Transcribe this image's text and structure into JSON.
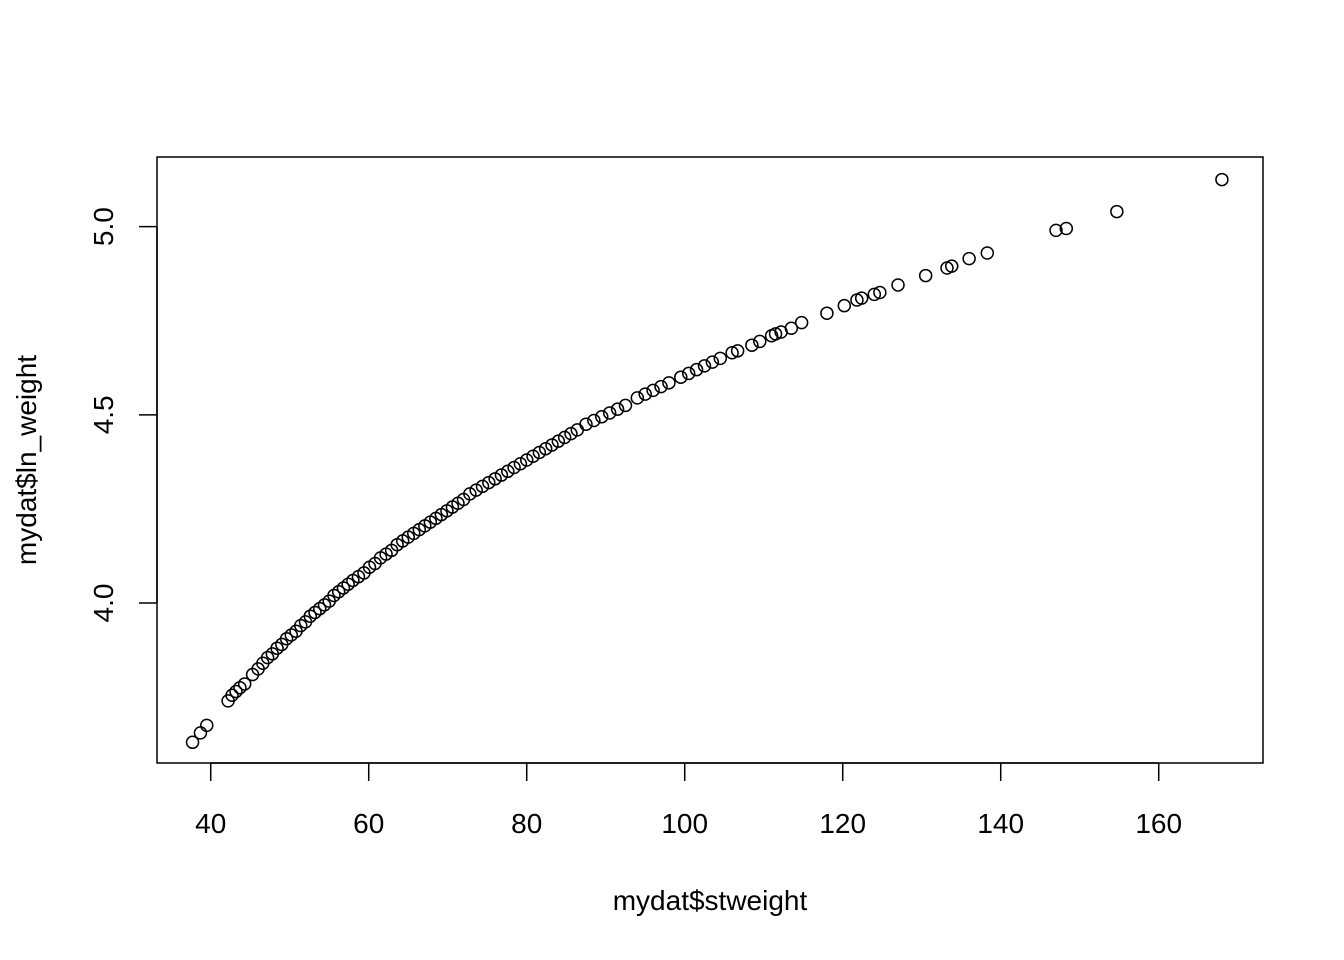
{
  "chart_data": {
    "type": "scatter",
    "title": "",
    "xlabel": "mydat$stweight",
    "ylabel": "mydat$ln_weight",
    "xlim": [
      33.2,
      173.2
    ],
    "ylim": [
      3.575,
      5.185
    ],
    "x_ticks": [
      40,
      60,
      80,
      100,
      120,
      140,
      160
    ],
    "y_ticks": [
      4.0,
      4.5,
      5.0
    ],
    "x_tick_labels": [
      "40",
      "60",
      "80",
      "100",
      "120",
      "140",
      "160"
    ],
    "y_tick_labels": [
      "4.0",
      "4.5",
      "5.0"
    ],
    "grid": false,
    "legend": "none",
    "marker": "open-circle",
    "x": [
      37.7,
      38.7,
      39.5,
      42.2,
      42.7,
      43.2,
      43.7,
      44.3,
      45.3,
      46.0,
      46.6,
      47.2,
      47.8,
      48.4,
      49.0,
      49.6,
      50.2,
      50.8,
      51.4,
      52.0,
      52.6,
      53.2,
      53.8,
      54.4,
      55.0,
      55.6,
      56.2,
      56.8,
      57.4,
      58.0,
      58.7,
      59.4,
      60.1,
      60.8,
      61.5,
      62.2,
      62.9,
      63.6,
      64.3,
      65.0,
      65.7,
      66.4,
      67.1,
      67.8,
      68.5,
      69.2,
      69.9,
      70.6,
      71.3,
      72.0,
      72.8,
      73.6,
      74.4,
      75.2,
      76.0,
      76.8,
      77.6,
      78.4,
      79.2,
      80.0,
      80.8,
      81.6,
      82.4,
      83.2,
      84.0,
      84.8,
      85.6,
      86.4,
      87.5,
      88.5,
      89.5,
      90.5,
      91.5,
      92.5,
      94.0,
      95.0,
      96.0,
      97.0,
      98.0,
      99.5,
      100.5,
      101.5,
      102.5,
      103.5,
      104.5,
      106.0,
      106.7,
      108.5,
      109.5,
      111.0,
      111.5,
      112.2,
      113.5,
      114.8,
      118.0,
      120.2,
      121.8,
      122.4,
      124.0,
      124.7,
      127.0,
      130.5,
      133.2,
      133.8,
      136.0,
      138.3,
      147.0,
      148.3,
      154.7,
      168.0
    ],
    "y": [
      3.63,
      3.655,
      3.675,
      3.74,
      3.755,
      3.765,
      3.775,
      3.785,
      3.81,
      3.825,
      3.84,
      3.855,
      3.865,
      3.88,
      3.89,
      3.905,
      3.915,
      3.925,
      3.94,
      3.95,
      3.965,
      3.975,
      3.985,
      3.995,
      4.005,
      4.02,
      4.03,
      4.04,
      4.05,
      4.06,
      4.07,
      4.08,
      4.095,
      4.105,
      4.12,
      4.13,
      4.14,
      4.155,
      4.165,
      4.175,
      4.185,
      4.195,
      4.205,
      4.215,
      4.225,
      4.235,
      4.245,
      4.255,
      4.265,
      4.275,
      4.29,
      4.3,
      4.31,
      4.32,
      4.33,
      4.34,
      4.35,
      4.36,
      4.37,
      4.38,
      4.39,
      4.4,
      4.41,
      4.42,
      4.43,
      4.44,
      4.45,
      4.46,
      4.475,
      4.485,
      4.495,
      4.505,
      4.515,
      4.525,
      4.545,
      4.555,
      4.565,
      4.575,
      4.585,
      4.6,
      4.61,
      4.62,
      4.63,
      4.64,
      4.65,
      4.665,
      4.67,
      4.685,
      4.695,
      4.71,
      4.715,
      4.72,
      4.73,
      4.745,
      4.77,
      4.79,
      4.805,
      4.81,
      4.82,
      4.825,
      4.845,
      4.87,
      4.89,
      4.895,
      4.915,
      4.93,
      4.99,
      4.995,
      5.04,
      5.125
    ]
  }
}
